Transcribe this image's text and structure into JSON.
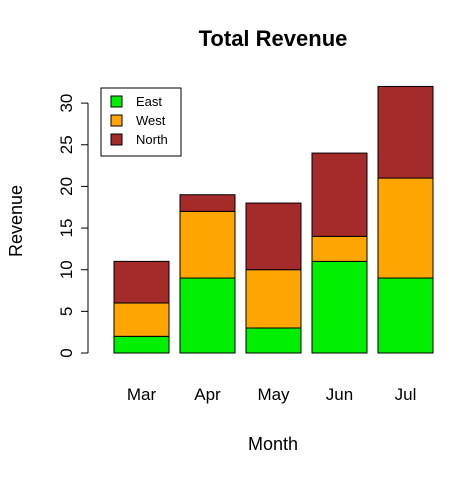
{
  "chart_data": {
    "type": "bar",
    "stacked": true,
    "title": "Total Revenue",
    "xlabel": "Month",
    "ylabel": "Revenue",
    "categories": [
      "Mar",
      "Apr",
      "May",
      "Jun",
      "Jul"
    ],
    "ylim": [
      0,
      32
    ],
    "yticks": [
      0,
      5,
      10,
      15,
      20,
      25,
      30
    ],
    "grid": false,
    "legend_position": "top-left",
    "series": [
      {
        "name": "East",
        "color": "#00ee00",
        "values": [
          2,
          9,
          3,
          11,
          9
        ]
      },
      {
        "name": "West",
        "color": "#ffa500",
        "values": [
          4,
          8,
          7,
          3,
          12
        ]
      },
      {
        "name": "North",
        "color": "#a52a2a",
        "values": [
          5,
          2,
          8,
          10,
          11
        ]
      }
    ]
  }
}
